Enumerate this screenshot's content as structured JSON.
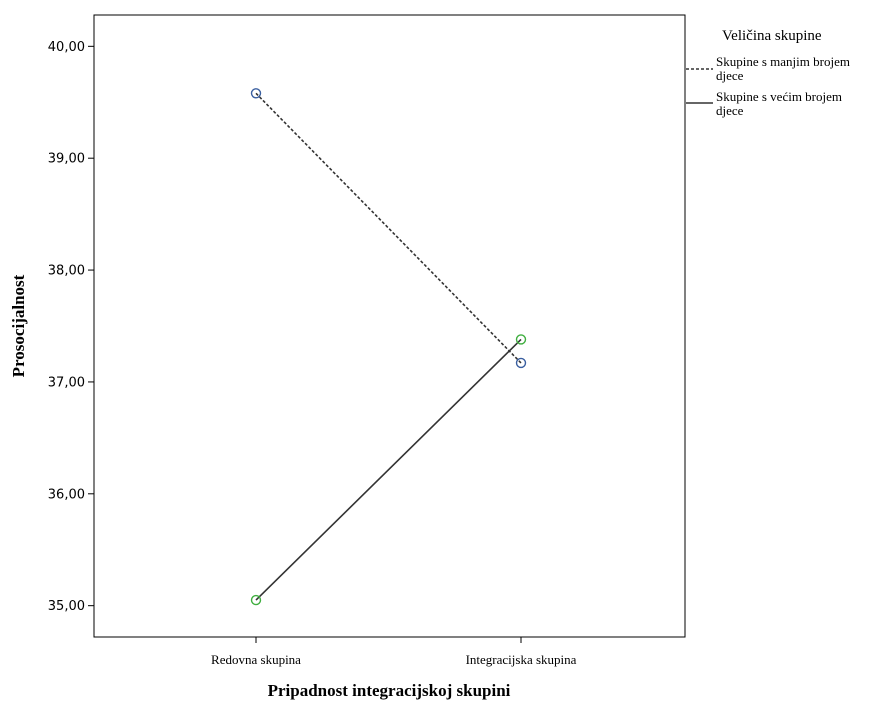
{
  "chart_data": {
    "type": "line",
    "title": "",
    "xlabel": "Pripadnost integracijskoj skupini",
    "ylabel": "Prosocijalnost",
    "categories": [
      "Redovna skupina",
      "Integracijska skupina"
    ],
    "yticks": [
      "35,00",
      "36,00",
      "37,00",
      "38,00",
      "39,00",
      "40,00"
    ],
    "ytick_values": [
      35,
      36,
      37,
      38,
      39,
      40
    ],
    "ylim": [
      34.72,
      40.28
    ],
    "grid": false,
    "legend": {
      "title": "Veličina skupine",
      "placement": "right",
      "entries": [
        {
          "line1": "Skupine s manjim brojem",
          "line2": "djece",
          "style": "dashed"
        },
        {
          "line1": "Skupine s većim brojem",
          "line2": "djece",
          "style": "solid"
        }
      ]
    },
    "series": [
      {
        "name": "Skupine s manjim brojem djece",
        "values": [
          39.58,
          37.17
        ],
        "style": "dashed",
        "marker_color": "#3a5fa0"
      },
      {
        "name": "Skupine s većim brojem djece",
        "values": [
          35.05,
          37.38
        ],
        "style": "solid",
        "marker_color": "#3fae3f"
      }
    ]
  }
}
